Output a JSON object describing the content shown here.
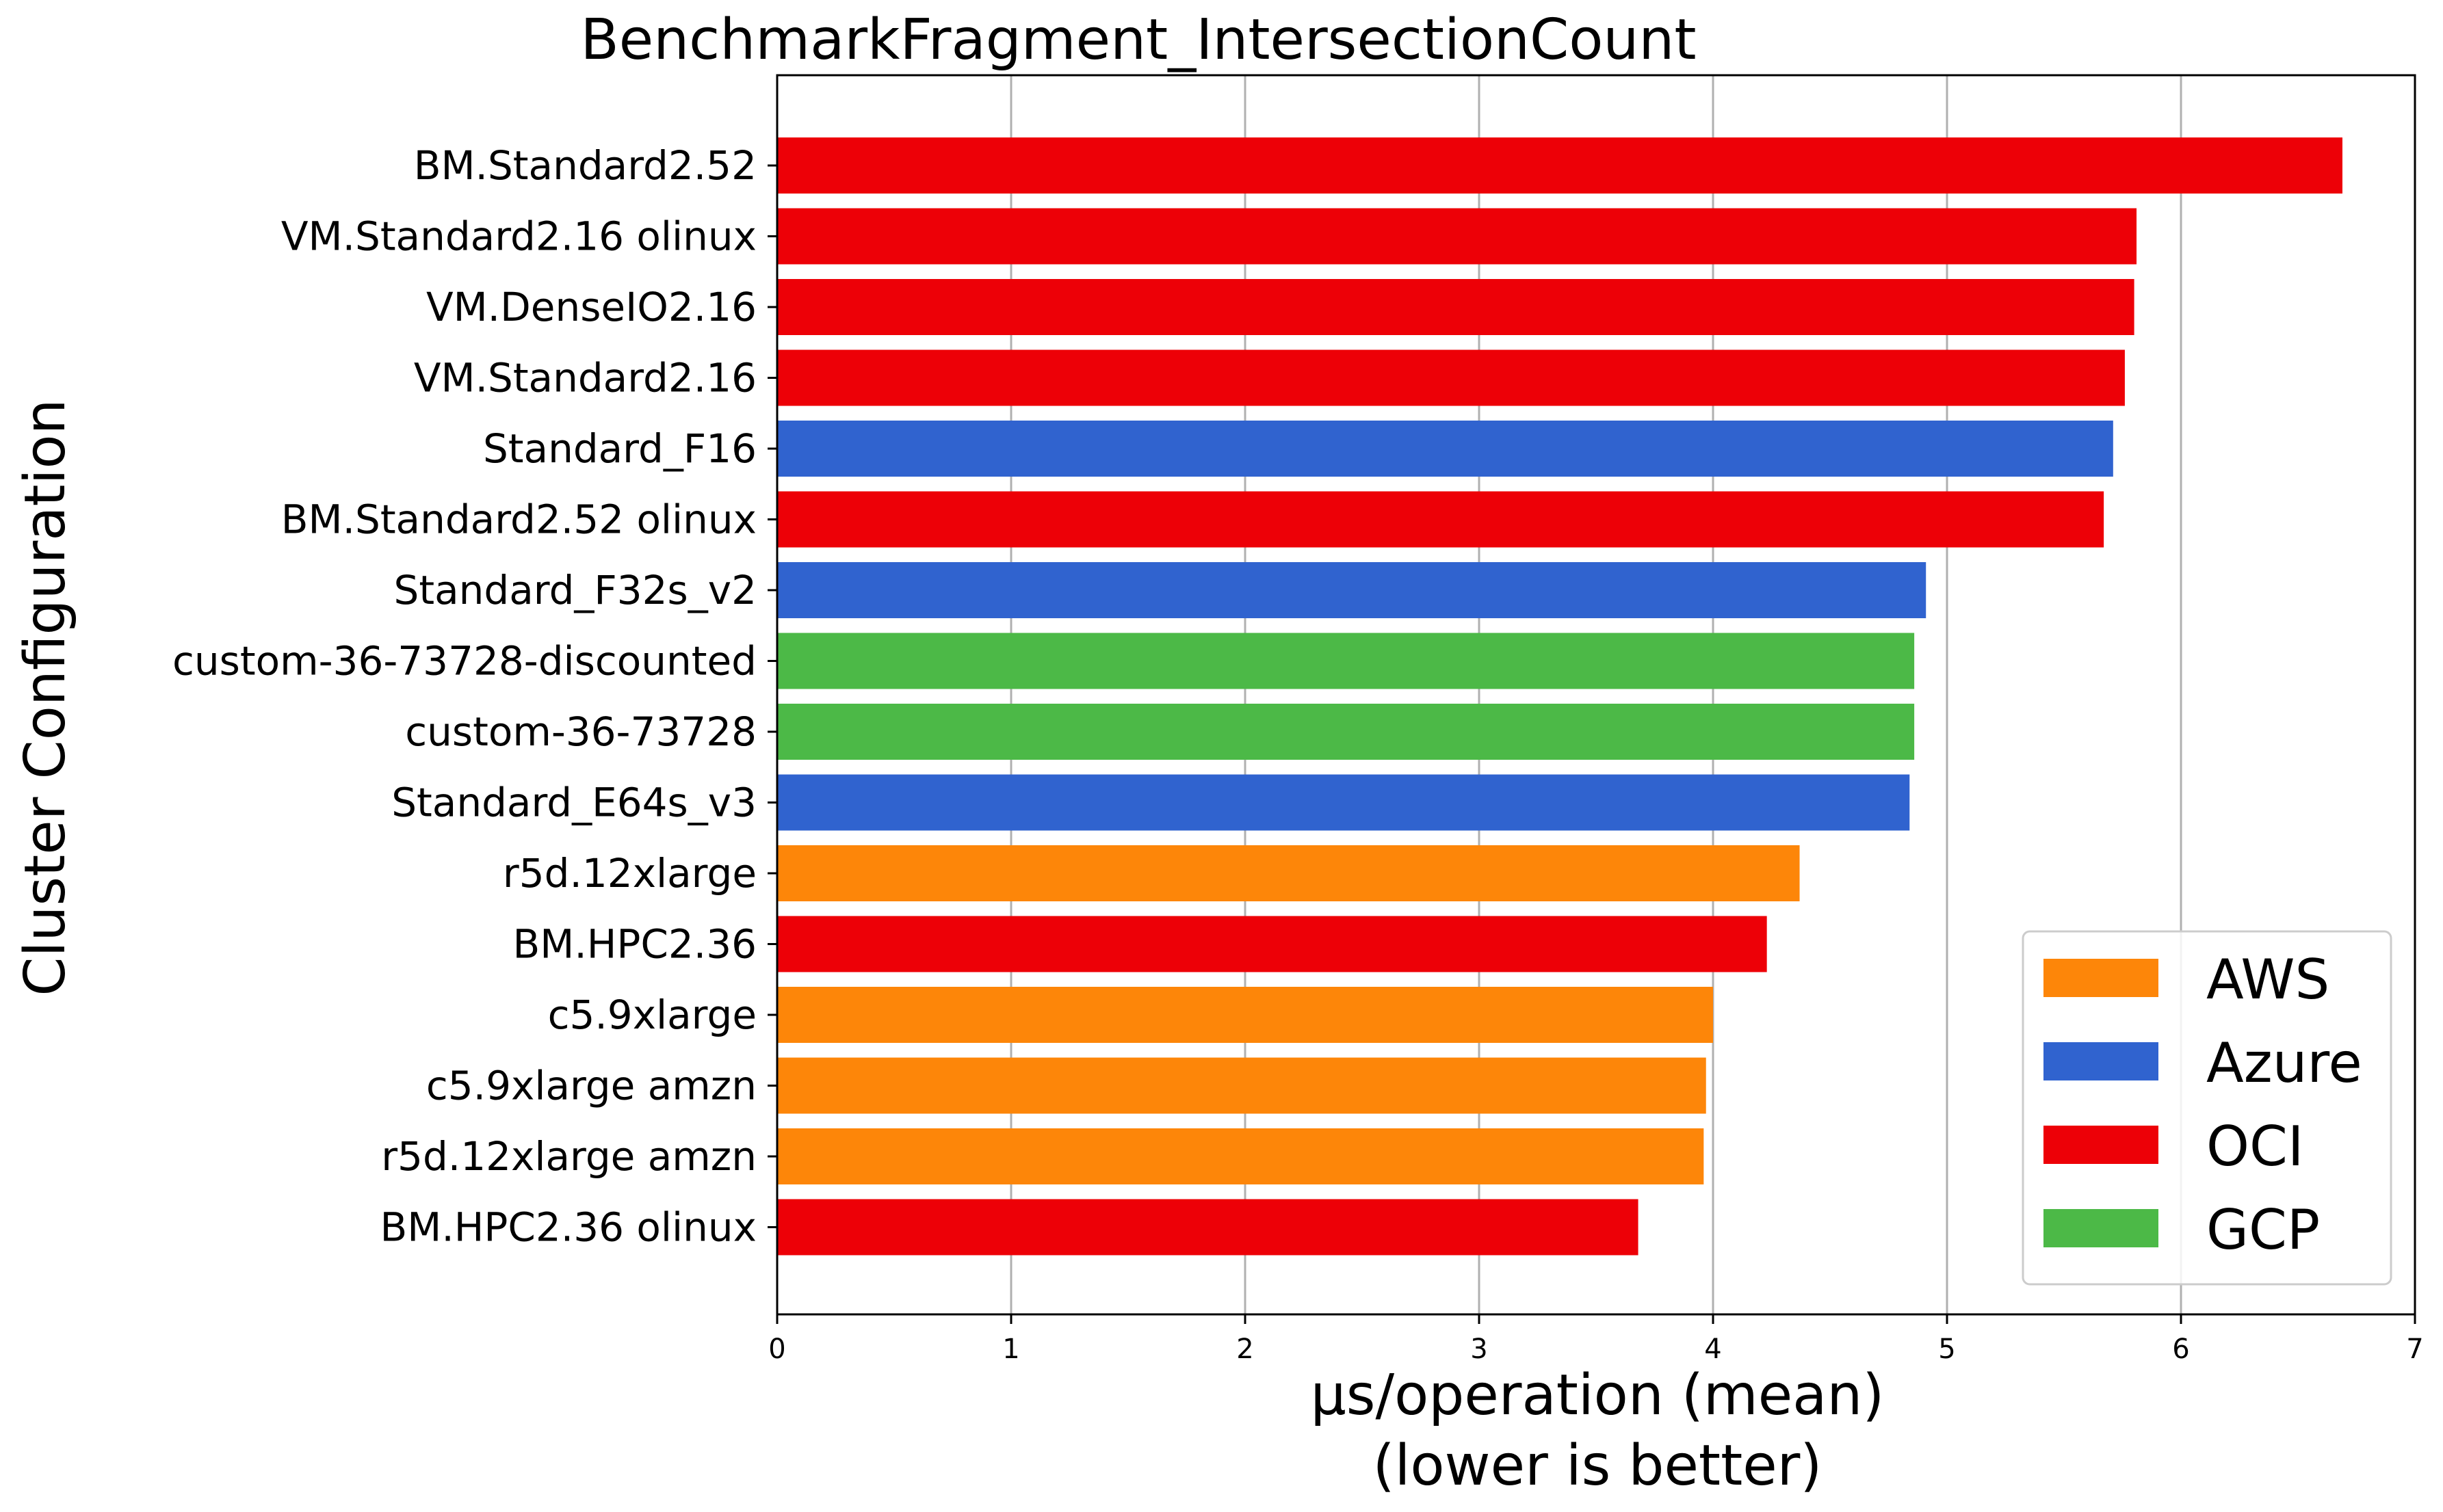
{
  "chart_data": {
    "type": "bar",
    "orientation": "horizontal",
    "title": "BenchmarkFragment_IntersectionCount",
    "xlabel": "µs/operation (mean)",
    "xlabel_line2": "(lower is better)",
    "ylabel": "Cluster Configuration",
    "xlim": [
      0,
      7
    ],
    "xticks": [
      "0",
      "1",
      "2",
      "3",
      "4",
      "5",
      "6",
      "7"
    ],
    "grid": "vertical",
    "legend_position": "lower-right",
    "provider_colors": {
      "AWS": "#fd8609",
      "Azure": "#3063cf",
      "OCI": "#ed0007",
      "GCP": "#4cb947"
    },
    "legend": [
      "AWS",
      "Azure",
      "OCI",
      "GCP"
    ],
    "categories": [
      "BM.Standard2.52",
      "VM.Standard2.16 olinux",
      "VM.DenseIO2.16",
      "VM.Standard2.16",
      "Standard_F16",
      "BM.Standard2.52 olinux",
      "Standard_F32s_v2",
      "custom-36-73728-discounted",
      "custom-36-73728",
      "Standard_E64s_v3",
      "r5d.12xlarge",
      "BM.HPC2.36",
      "c5.9xlarge",
      "c5.9xlarge amzn",
      "r5d.12xlarge amzn",
      "BM.HPC2.36 olinux"
    ],
    "values": [
      6.69,
      5.81,
      5.8,
      5.76,
      5.71,
      5.67,
      4.91,
      4.86,
      4.86,
      4.84,
      4.37,
      4.23,
      4.0,
      3.97,
      3.96,
      3.68
    ],
    "providers": [
      "OCI",
      "OCI",
      "OCI",
      "OCI",
      "Azure",
      "OCI",
      "Azure",
      "GCP",
      "GCP",
      "Azure",
      "AWS",
      "OCI",
      "AWS",
      "AWS",
      "AWS",
      "OCI"
    ]
  }
}
